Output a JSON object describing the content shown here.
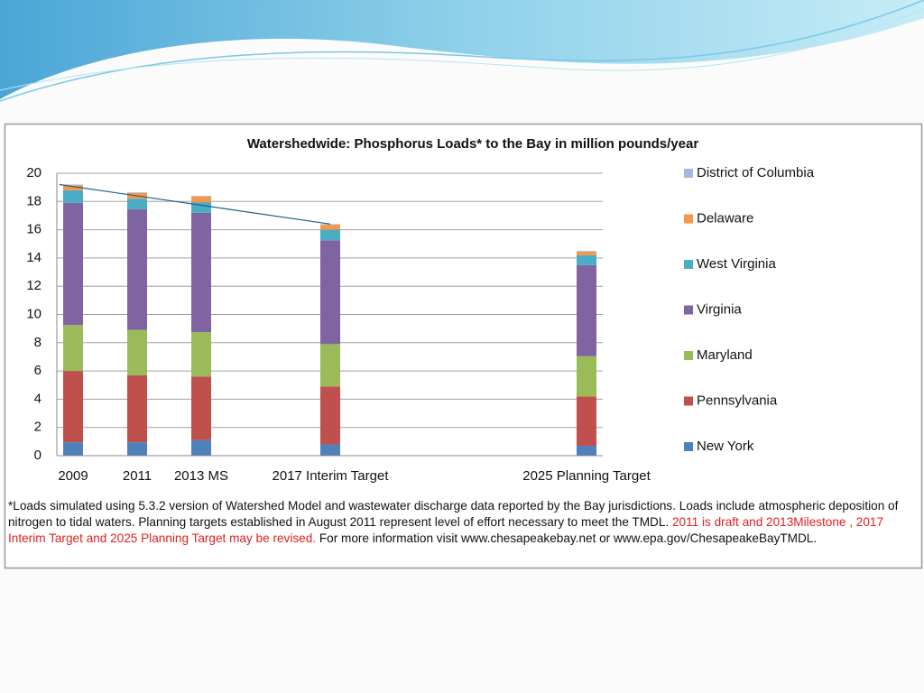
{
  "chart_data": {
    "type": "stacked_bar",
    "title": "Watershedwide: Phosphorus Loads* to the Bay in million pounds/year",
    "categories": [
      "2009",
      "2011",
      "2013 MS",
      "2017 Interim Target",
      "2025 Planning Target"
    ],
    "series": [
      {
        "name": "New York",
        "color": "#4f81bd",
        "values": [
          0.95,
          0.95,
          1.1,
          0.8,
          0.7
        ]
      },
      {
        "name": "Pennsylvania",
        "color": "#c0504d",
        "values": [
          5.05,
          4.75,
          4.5,
          4.1,
          3.5
        ]
      },
      {
        "name": "Maryland",
        "color": "#9bbb59",
        "values": [
          3.25,
          3.2,
          3.15,
          3.0,
          2.85
        ]
      },
      {
        "name": "Virginia",
        "color": "#8064a2",
        "values": [
          8.65,
          8.55,
          8.45,
          7.35,
          6.45
        ]
      },
      {
        "name": "West Virginia",
        "color": "#4bacc6",
        "values": [
          0.9,
          0.75,
          0.75,
          0.75,
          0.7
        ]
      },
      {
        "name": "Delaware",
        "color": "#f79646",
        "values": [
          0.35,
          0.4,
          0.4,
          0.35,
          0.25
        ]
      },
      {
        "name": "District of Columbia",
        "color": "#a6b8dc",
        "values": [
          0.05,
          0.05,
          0.05,
          0.05,
          0.05
        ]
      }
    ],
    "ylim": [
      0,
      20
    ],
    "yticks": [
      0,
      2,
      4,
      6,
      8,
      10,
      12,
      14,
      16,
      18,
      20
    ],
    "grid": true,
    "legend": "right"
  },
  "footnote": [
    "*Loads simulated using 5.3.2 version of Watershed Model and wastewater discharge data reported by the Bay jurisdictions.  Loads include atmospheric deposition of nitrogen to tidal waters. Planning targets established in August 2011 represent level of effort necessary to meet the TMDL.",
    "2011 is draft and 2013Milestone , 2017 Interim Target and 2025 Planning Target may be revised.",
    "For more information visit www.chesapeakebay.net or www.epa.gov/ChesapeakeBayTMDL."
  ]
}
